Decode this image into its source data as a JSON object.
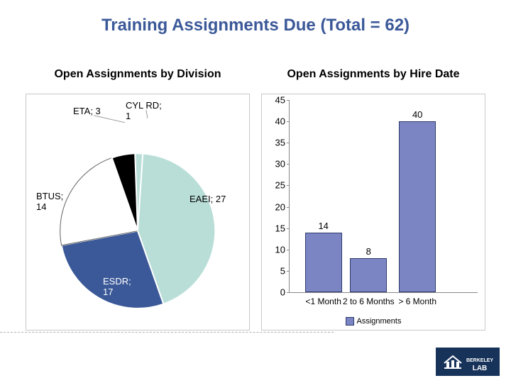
{
  "title": "Training Assignments Due (Total = 62)",
  "pie": {
    "title": "Open Assignments by Division",
    "type": "pie",
    "title_fontsize": 16,
    "label_fontsize": 13,
    "background_color": "#ffffff",
    "border_color": "#c8c8c8",
    "slice_border_color": "#ffffff",
    "start_angle_deg": -92,
    "direction": "clockwise",
    "slices": [
      {
        "label": "CYLRD",
        "value": 1,
        "color": "#b9ded7",
        "display": "CYL RD;\n1"
      },
      {
        "label": "EAEI",
        "value": 27,
        "color": "#b9ded7",
        "display": "EAEI; 27"
      },
      {
        "label": "ESDR",
        "value": 17,
        "color": "#3b5998",
        "display": "ESDR;\n17"
      },
      {
        "label": "BTUS",
        "value": 14,
        "color": "#ffffff",
        "display": "BTUS;\n14"
      },
      {
        "label": "ETA",
        "value": 3,
        "color": "#000000",
        "display": "ETA; 3"
      }
    ]
  },
  "bar": {
    "title": "Open Assignments by Hire Date",
    "type": "bar",
    "title_fontsize": 16,
    "label_fontsize": 13,
    "background_color": "#ffffff",
    "border_color": "#c8c8c8",
    "y_min": 0,
    "y_max": 45,
    "y_tick_step": 5,
    "bar_color": "#7b85c4",
    "bar_border_color": "#2e3a6b",
    "axis_color": "#888888",
    "categories": [
      "<1 Month",
      "2 to 6 Months",
      "> 6 Month"
    ],
    "values": [
      14,
      8,
      40
    ],
    "series_name": "Assignments"
  },
  "logo": {
    "text": "BERKELEY LAB",
    "bg_color": "#17335a",
    "fg_color": "#ffffff"
  }
}
